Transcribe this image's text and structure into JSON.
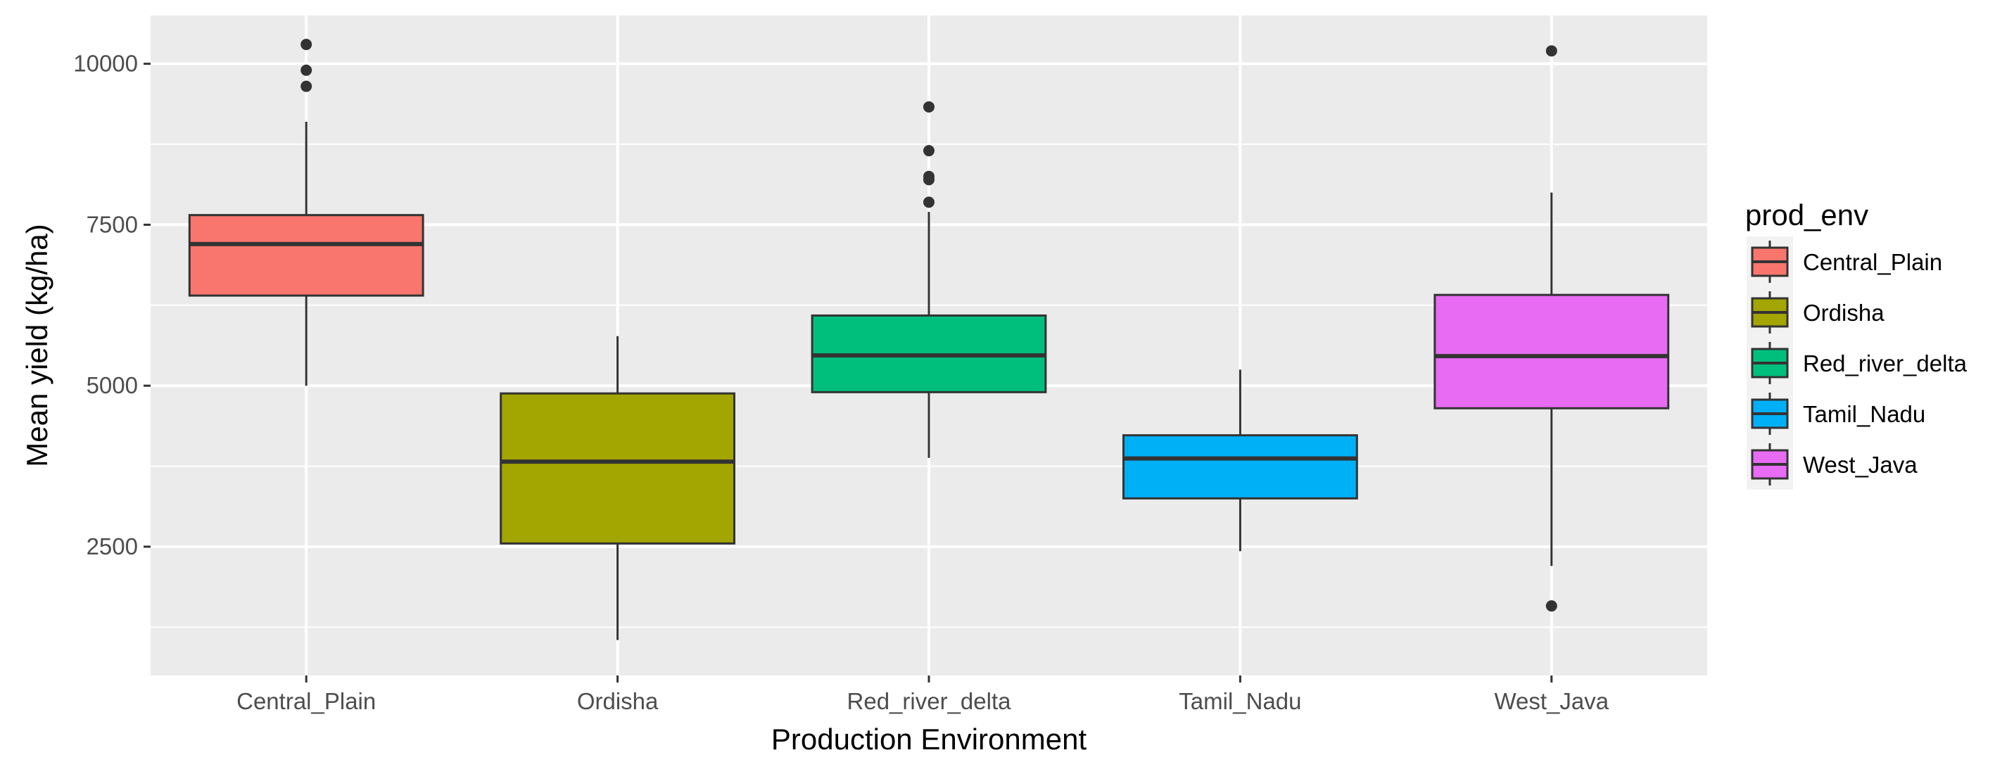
{
  "chart_data": {
    "type": "boxplot",
    "xlabel": "Production Environment",
    "ylabel": "Mean yield (kg/ha)",
    "ylim": [
      500,
      10750
    ],
    "y_ticks": [
      2500,
      5000,
      7500,
      10000
    ],
    "y_tick_labels": [
      "2500",
      "5000",
      "7500",
      "10000"
    ],
    "y_minor_ticks": [
      1250,
      3750,
      6250,
      8750
    ],
    "categories": [
      "Central_Plain",
      "Ordisha",
      "Red_river_delta",
      "Tamil_Nadu",
      "West_Java"
    ],
    "grid": true,
    "legend": {
      "title": "prod_env",
      "placement": "right",
      "entries": [
        "Central_Plain",
        "Ordisha",
        "Red_river_delta",
        "Tamil_Nadu",
        "West_Java"
      ]
    },
    "boxes": [
      {
        "category": "Central_Plain",
        "whisker_low": 5000,
        "q1": 6400,
        "median": 7200,
        "q3": 7650,
        "whisker_high": 9100,
        "outliers": [
          9650,
          9900,
          10300
        ],
        "color": "#F8766D"
      },
      {
        "category": "Ordisha",
        "whisker_low": 1050,
        "q1": 2550,
        "median": 3820,
        "q3": 4880,
        "whisker_high": 5770,
        "outliers": [],
        "color": "#A3A500"
      },
      {
        "category": "Red_river_delta",
        "whisker_low": 3880,
        "q1": 4900,
        "median": 5470,
        "q3": 6090,
        "whisker_high": 7700,
        "outliers": [
          7850,
          8200,
          8250,
          8650,
          9330
        ],
        "color": "#00BF7D"
      },
      {
        "category": "Tamil_Nadu",
        "whisker_low": 2430,
        "q1": 3250,
        "median": 3870,
        "q3": 4230,
        "whisker_high": 5250,
        "outliers": [],
        "color": "#00B0F6"
      },
      {
        "category": "West_Java",
        "whisker_low": 2200,
        "q1": 4650,
        "median": 5460,
        "q3": 6410,
        "whisker_high": 8000,
        "outliers": [
          1580,
          10200
        ],
        "color": "#E76BF3"
      }
    ],
    "colors": {
      "panel_background": "#EBEBEB",
      "grid": "#FFFFFF",
      "box_line": "#333333"
    }
  }
}
